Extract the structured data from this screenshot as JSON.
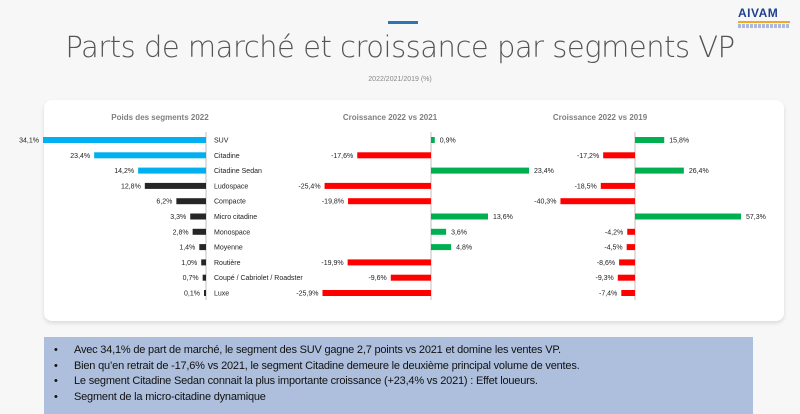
{
  "header": {
    "title": "Parts de marché et croissance par segments VP",
    "subtitle": "2022/2021/2019 (%)",
    "logo": "AIVAM"
  },
  "chart_data": [
    {
      "type": "bar",
      "title": "Poids des segments 2022",
      "categories": [
        "SUV",
        "Citadine",
        "Citadine Sedan",
        "Ludospace",
        "Compacte",
        "Micro citadine",
        "Monospace",
        "Moyenne",
        "Routière",
        "Coupé / Cabriolet / Roadster",
        "Luxe"
      ],
      "values": [
        34.1,
        23.4,
        14.2,
        12.8,
        6.2,
        3.3,
        2.8,
        1.4,
        1.0,
        0.7,
        0.1
      ],
      "labels": [
        "34,1%",
        "23,4%",
        "14,2%",
        "12,8%",
        "6,2%",
        "3,3%",
        "2,8%",
        "1,4%",
        "1,0%",
        "0,7%",
        "0,1%"
      ],
      "colors": [
        "#00b0f0",
        "#00b0f0",
        "#00b0f0",
        "#262626",
        "#262626",
        "#262626",
        "#262626",
        "#262626",
        "#262626",
        "#262626",
        "#262626"
      ]
    },
    {
      "type": "bar",
      "title": "Croissance 2022 vs 2021",
      "values": [
        0.9,
        -17.6,
        23.4,
        -25.4,
        -19.8,
        13.6,
        3.6,
        4.8,
        -19.9,
        -9.6,
        -25.9
      ],
      "labels": [
        "0,9%",
        "-17,6%",
        "23,4%",
        "-25,4%",
        "-19,8%",
        "13,6%",
        "3,6%",
        "4,8%",
        "-19,9%",
        "-9,6%",
        "-25,9%"
      ]
    },
    {
      "type": "bar",
      "title": "Croissance 2022 vs 2019",
      "values": [
        15.8,
        -17.2,
        26.4,
        -18.5,
        -40.3,
        57.3,
        -4.2,
        -4.5,
        -8.6,
        -9.3,
        -7.4
      ],
      "labels": [
        "15,8%",
        "-17,2%",
        "26,4%",
        "-18,5%",
        "-40,3%",
        "57,3%",
        "-4,2%",
        "-4,5%",
        "-8,6%",
        "-9,3%",
        "-7,4%"
      ]
    }
  ],
  "colors": {
    "positive": "#00b050",
    "negative": "#ff0000"
  },
  "notes": [
    "Avec 34,1% de part de marché, le segment des SUV gagne 2,7 points vs 2021 et domine les ventes VP.",
    "Bien qu’en retrait de -17,6% vs 2021, le segment Citadine demeure le deuxième principal volume de ventes.",
    "Le segment Citadine Sedan connait la plus importante croissance (+23,4% vs 2021) : Effet loueurs.",
    "Segment de la micro-citadine dynamique"
  ]
}
